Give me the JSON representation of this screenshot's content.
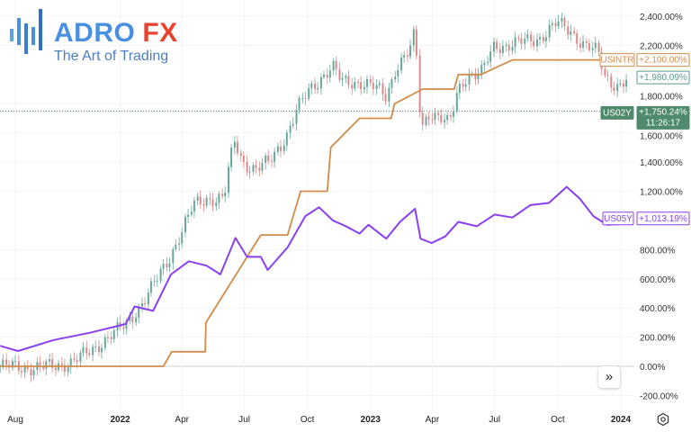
{
  "logo": {
    "brand_main": "ADRO",
    "brand_accent": "FX",
    "tagline": "The Art of Trading",
    "colors": {
      "main": "#4a90e2",
      "accent": "#e8432f"
    }
  },
  "controls": {
    "scroll_button_icon": "double-chevron-right-icon",
    "scroll_label": "»",
    "settings_icon": "settings-icon"
  },
  "chart_data": {
    "type": "line",
    "title": "",
    "xlabel": "",
    "ylabel": "",
    "ylim": [
      -250,
      2450
    ],
    "grid": true,
    "y_ticks": [
      {
        "value": 2400,
        "label": "2,400.00%"
      },
      {
        "value": 2200,
        "label": "2,200.00%"
      },
      {
        "value": 1800,
        "label": "1,800.00%"
      },
      {
        "value": 1600,
        "label": "1,600.00%"
      },
      {
        "value": 1400,
        "label": "1,400.00%"
      },
      {
        "value": 1200,
        "label": "1,200.00%"
      },
      {
        "value": 800,
        "label": "800.00%"
      },
      {
        "value": 600,
        "label": "600.00%"
      },
      {
        "value": 400,
        "label": "400.00%"
      },
      {
        "value": 200,
        "label": "200.00%"
      },
      {
        "value": 0,
        "label": "0.00%"
      },
      {
        "value": -200,
        "label": "-200.00%"
      }
    ],
    "x_ticks": [
      {
        "date": "2021-08-01",
        "label": "Aug",
        "bold": false
      },
      {
        "date": "2022-01-01",
        "label": "2022",
        "bold": true
      },
      {
        "date": "2022-04-01",
        "label": "Apr",
        "bold": false
      },
      {
        "date": "2022-07-01",
        "label": "Jul",
        "bold": false
      },
      {
        "date": "2022-10-01",
        "label": "Oct",
        "bold": false
      },
      {
        "date": "2023-01-01",
        "label": "2023",
        "bold": true
      },
      {
        "date": "2023-04-01",
        "label": "Apr",
        "bold": false
      },
      {
        "date": "2023-07-01",
        "label": "Jul",
        "bold": false
      },
      {
        "date": "2023-10-01",
        "label": "Oct",
        "bold": false
      },
      {
        "date": "2024-01-01",
        "label": "2024",
        "bold": true
      }
    ],
    "series": [
      {
        "name": "US02Y",
        "kind": "candlestick",
        "color_up": "#6aa79a",
        "color_down": "#d98a8a",
        "points": [
          [
            "2021-07-10",
            0
          ],
          [
            "2021-08-31",
            -10
          ],
          [
            "2021-09-26",
            0
          ],
          [
            "2021-10-23",
            30
          ],
          [
            "2021-11-18",
            100
          ],
          [
            "2021-12-14",
            200
          ],
          [
            "2022-01-09",
            280
          ],
          [
            "2022-02-04",
            450
          ],
          [
            "2022-02-18",
            550
          ],
          [
            "2022-03-09",
            700
          ],
          [
            "2022-03-29",
            900
          ],
          [
            "2022-04-18",
            1100
          ],
          [
            "2022-05-07",
            1150
          ],
          [
            "2022-06-01",
            1150
          ],
          [
            "2022-06-16",
            1550
          ],
          [
            "2022-06-29",
            1400
          ],
          [
            "2022-07-18",
            1350
          ],
          [
            "2022-08-07",
            1400
          ],
          [
            "2022-09-02",
            1600
          ],
          [
            "2022-09-15",
            1750
          ],
          [
            "2022-10-05",
            1900
          ],
          [
            "2022-10-25",
            2000
          ],
          [
            "2022-11-07",
            2050
          ],
          [
            "2022-11-20",
            1950
          ],
          [
            "2022-12-16",
            1950
          ],
          [
            "2023-01-11",
            1900
          ],
          [
            "2023-01-24",
            1850
          ],
          [
            "2023-02-07",
            2050
          ],
          [
            "2023-02-26",
            2150
          ],
          [
            "2023-03-07",
            2280
          ],
          [
            "2023-03-13",
            1800
          ],
          [
            "2023-03-18",
            1650
          ],
          [
            "2023-03-28",
            1750
          ],
          [
            "2023-04-13",
            1700
          ],
          [
            "2023-04-26",
            1650
          ],
          [
            "2023-05-09",
            1900
          ],
          [
            "2023-05-22",
            2000
          ],
          [
            "2023-06-11",
            2000
          ],
          [
            "2023-07-01",
            2200
          ],
          [
            "2023-07-20",
            2200
          ],
          [
            "2023-08-09",
            2220
          ],
          [
            "2023-09-04",
            2250
          ],
          [
            "2023-09-30",
            2350
          ],
          [
            "2023-10-20",
            2300
          ],
          [
            "2023-11-09",
            2200
          ],
          [
            "2023-11-29",
            2150
          ],
          [
            "2023-12-08",
            2000
          ],
          [
            "2023-12-18",
            1950
          ],
          [
            "2024-01-01",
            1920
          ],
          [
            "2024-01-13",
            1980
          ]
        ],
        "last_label": "+1,980.09%",
        "label_color": "#5b9a8b",
        "price_line": {
          "value": 1750.24,
          "symbol": "US02Y",
          "label": "+1,750.24%",
          "countdown": "11:26:17",
          "color": "#4f8a6c"
        }
      },
      {
        "name": "USINTR",
        "kind": "line",
        "color": "#d08c4a",
        "points": [
          [
            "2021-07-10",
            0
          ],
          [
            "2022-03-05",
            0
          ],
          [
            "2022-03-17",
            100
          ],
          [
            "2022-05-05",
            100
          ],
          [
            "2022-05-06",
            300
          ],
          [
            "2022-07-25",
            900
          ],
          [
            "2022-09-02",
            900
          ],
          [
            "2022-09-21",
            1200
          ],
          [
            "2022-10-30",
            1200
          ],
          [
            "2022-11-04",
            1500
          ],
          [
            "2022-12-16",
            1700
          ],
          [
            "2023-01-31",
            1700
          ],
          [
            "2023-02-05",
            1800
          ],
          [
            "2023-03-18",
            1900
          ],
          [
            "2023-05-03",
            1900
          ],
          [
            "2023-05-09",
            2000
          ],
          [
            "2023-06-11",
            2000
          ],
          [
            "2023-07-27",
            2100
          ],
          [
            "2024-01-13",
            2100
          ]
        ],
        "last_label": "+2,100.00%"
      },
      {
        "name": "US05Y",
        "kind": "line",
        "color": "#8a3ff0",
        "points": [
          [
            "2021-07-10",
            140
          ],
          [
            "2021-08-05",
            105
          ],
          [
            "2021-09-26",
            180
          ],
          [
            "2021-11-18",
            230
          ],
          [
            "2022-01-09",
            290
          ],
          [
            "2022-01-22",
            410
          ],
          [
            "2022-02-18",
            380
          ],
          [
            "2022-03-16",
            630
          ],
          [
            "2022-04-11",
            720
          ],
          [
            "2022-05-07",
            690
          ],
          [
            "2022-05-27",
            630
          ],
          [
            "2022-06-18",
            880
          ],
          [
            "2022-07-05",
            750
          ],
          [
            "2022-07-25",
            750
          ],
          [
            "2022-08-04",
            660
          ],
          [
            "2022-09-02",
            815
          ],
          [
            "2022-09-28",
            1030
          ],
          [
            "2022-10-18",
            1090
          ],
          [
            "2022-11-07",
            1000
          ],
          [
            "2022-11-26",
            960
          ],
          [
            "2022-12-16",
            910
          ],
          [
            "2022-12-29",
            970
          ],
          [
            "2023-01-24",
            875
          ],
          [
            "2023-02-13",
            990
          ],
          [
            "2023-03-07",
            1080
          ],
          [
            "2023-03-15",
            875
          ],
          [
            "2023-03-31",
            845
          ],
          [
            "2023-04-20",
            890
          ],
          [
            "2023-05-09",
            990
          ],
          [
            "2023-06-05",
            960
          ],
          [
            "2023-07-01",
            1040
          ],
          [
            "2023-07-27",
            1020
          ],
          [
            "2023-08-22",
            1105
          ],
          [
            "2023-09-18",
            1120
          ],
          [
            "2023-10-14",
            1230
          ],
          [
            "2023-11-02",
            1150
          ],
          [
            "2023-11-22",
            1030
          ],
          [
            "2023-12-12",
            970
          ],
          [
            "2024-01-01",
            975
          ],
          [
            "2024-01-13",
            1013.19
          ]
        ],
        "last_label": "+1,013.19%"
      }
    ]
  }
}
